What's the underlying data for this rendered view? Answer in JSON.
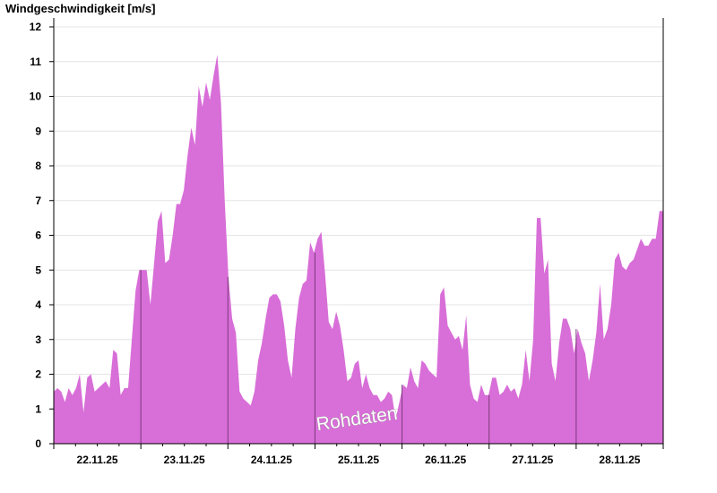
{
  "chart_data": {
    "type": "area",
    "title": "Windgeschwindigkeit [m/s]",
    "ylim": [
      0,
      12
    ],
    "yticks": [
      0,
      1,
      2,
      3,
      4,
      5,
      6,
      7,
      8,
      9,
      10,
      11,
      12
    ],
    "xlim": [
      0,
      7
    ],
    "x_unit": "days since 21.11.25 22:00 (sample spacing 1 h)",
    "day_boundaries": [
      1,
      2,
      3,
      4,
      5,
      6
    ],
    "xtick_labels": [
      {
        "pos": 0.5,
        "label": "22.11.25"
      },
      {
        "pos": 1.5,
        "label": "23.11.25"
      },
      {
        "pos": 2.5,
        "label": "24.11.25"
      },
      {
        "pos": 3.5,
        "label": "25.11.25"
      },
      {
        "pos": 4.5,
        "label": "26.11.25"
      },
      {
        "pos": 5.5,
        "label": "27.11.25"
      },
      {
        "pos": 6.5,
        "label": "28.11.25"
      }
    ],
    "watermark": "Rohdaten",
    "fill_color": "#d86ed8",
    "grid": true,
    "series": [
      {
        "name": "Windgeschwindigkeit",
        "values": [
          1.5,
          1.6,
          1.5,
          1.2,
          1.6,
          1.4,
          1.6,
          2.0,
          0.9,
          1.9,
          2.0,
          1.5,
          1.6,
          1.7,
          1.8,
          1.6,
          2.7,
          2.6,
          1.4,
          1.6,
          1.6,
          3.0,
          4.4,
          5.0,
          5.0,
          5.0,
          4.0,
          5.2,
          6.4,
          6.7,
          5.2,
          5.3,
          6.0,
          6.9,
          6.9,
          7.3,
          8.3,
          9.1,
          8.6,
          10.3,
          9.7,
          10.4,
          9.9,
          10.6,
          11.2,
          9.8,
          7.0,
          4.8,
          3.6,
          3.2,
          1.5,
          1.3,
          1.2,
          1.1,
          1.5,
          2.4,
          2.9,
          3.6,
          4.2,
          4.3,
          4.3,
          4.1,
          3.4,
          2.4,
          1.9,
          3.3,
          4.2,
          4.6,
          4.7,
          5.8,
          5.5,
          5.9,
          6.1,
          4.9,
          3.5,
          3.3,
          3.8,
          3.4,
          2.7,
          1.8,
          1.9,
          2.3,
          2.4,
          1.6,
          2.0,
          1.6,
          1.4,
          1.4,
          1.2,
          1.3,
          1.5,
          1.4,
          0.7,
          1.2,
          1.7,
          1.6,
          2.2,
          1.8,
          1.6,
          2.4,
          2.3,
          2.1,
          2.0,
          1.9,
          4.3,
          4.5,
          3.4,
          3.2,
          3.0,
          3.1,
          2.7,
          3.7,
          1.7,
          1.3,
          1.2,
          1.7,
          1.4,
          1.4,
          1.9,
          1.9,
          1.4,
          1.5,
          1.7,
          1.5,
          1.6,
          1.3,
          1.7,
          2.7,
          1.8,
          3.0,
          6.5,
          6.5,
          4.9,
          5.3,
          2.3,
          1.8,
          2.9,
          3.6,
          3.6,
          3.3,
          2.6,
          3.3,
          2.9,
          2.6,
          1.8,
          2.4,
          3.2,
          4.6,
          3.0,
          3.3,
          4.0,
          5.3,
          5.5,
          5.1,
          5.0,
          5.2,
          5.3,
          5.6,
          5.9,
          5.7,
          5.7,
          5.9,
          5.9,
          6.7,
          6.7
        ]
      }
    ]
  }
}
